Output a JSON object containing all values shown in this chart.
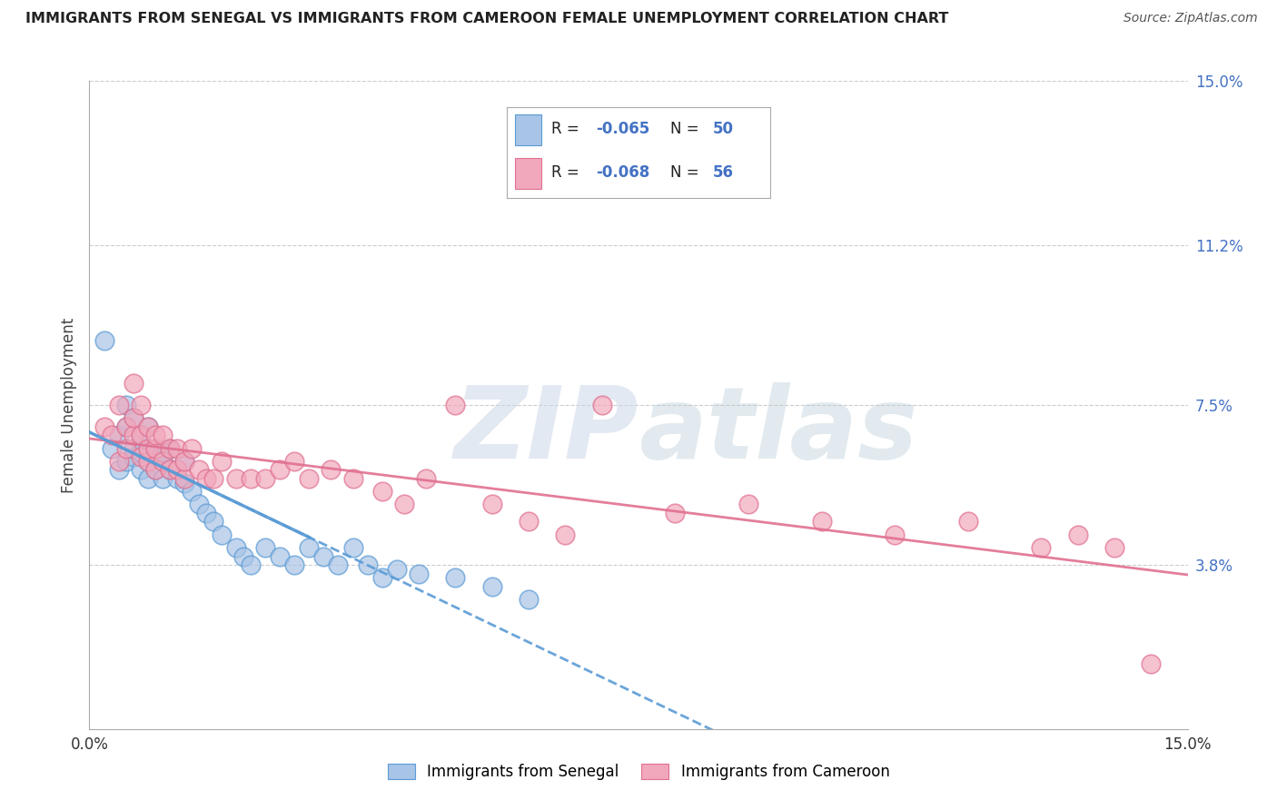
{
  "title": "IMMIGRANTS FROM SENEGAL VS IMMIGRANTS FROM CAMEROON FEMALE UNEMPLOYMENT CORRELATION CHART",
  "source": "Source: ZipAtlas.com",
  "ylabel": "Female Unemployment",
  "xlim": [
    0.0,
    0.15
  ],
  "ylim": [
    0.0,
    0.15
  ],
  "yticks": [
    0.038,
    0.075,
    0.112,
    0.15
  ],
  "ytick_labels": [
    "3.8%",
    "7.5%",
    "11.2%",
    "15.0%"
  ],
  "color_senegal": "#a8c4e6",
  "color_cameroon": "#f2a8bc",
  "color_senegal_line": "#5b9bd5",
  "color_cameroon_line": "#e07090",
  "color_text_blue": "#4472c4",
  "background_color": "#ffffff",
  "watermark_zip_color": "#d0dce8",
  "watermark_atlas_color": "#c8dde8",
  "senegal_x": [
    0.002,
    0.003,
    0.004,
    0.004,
    0.005,
    0.005,
    0.005,
    0.006,
    0.006,
    0.006,
    0.007,
    0.007,
    0.007,
    0.008,
    0.008,
    0.008,
    0.008,
    0.009,
    0.009,
    0.009,
    0.01,
    0.01,
    0.01,
    0.011,
    0.011,
    0.012,
    0.013,
    0.013,
    0.014,
    0.015,
    0.016,
    0.017,
    0.018,
    0.02,
    0.021,
    0.022,
    0.024,
    0.026,
    0.028,
    0.03,
    0.032,
    0.034,
    0.036,
    0.038,
    0.04,
    0.042,
    0.045,
    0.05,
    0.055,
    0.06
  ],
  "senegal_y": [
    0.09,
    0.065,
    0.06,
    0.068,
    0.062,
    0.07,
    0.075,
    0.063,
    0.065,
    0.072,
    0.06,
    0.064,
    0.068,
    0.058,
    0.062,
    0.065,
    0.07,
    0.06,
    0.063,
    0.065,
    0.058,
    0.062,
    0.064,
    0.06,
    0.065,
    0.058,
    0.057,
    0.062,
    0.055,
    0.052,
    0.05,
    0.048,
    0.045,
    0.042,
    0.04,
    0.038,
    0.042,
    0.04,
    0.038,
    0.042,
    0.04,
    0.038,
    0.042,
    0.038,
    0.035,
    0.037,
    0.036,
    0.035,
    0.033,
    0.03
  ],
  "cameroon_x": [
    0.002,
    0.003,
    0.004,
    0.004,
    0.005,
    0.005,
    0.006,
    0.006,
    0.006,
    0.007,
    0.007,
    0.007,
    0.008,
    0.008,
    0.008,
    0.009,
    0.009,
    0.009,
    0.01,
    0.01,
    0.011,
    0.011,
    0.012,
    0.012,
    0.013,
    0.013,
    0.014,
    0.015,
    0.016,
    0.017,
    0.018,
    0.02,
    0.022,
    0.024,
    0.026,
    0.028,
    0.03,
    0.033,
    0.036,
    0.04,
    0.043,
    0.046,
    0.05,
    0.055,
    0.06,
    0.065,
    0.07,
    0.08,
    0.09,
    0.1,
    0.11,
    0.12,
    0.13,
    0.135,
    0.14,
    0.145
  ],
  "cameroon_y": [
    0.07,
    0.068,
    0.062,
    0.075,
    0.065,
    0.07,
    0.068,
    0.072,
    0.08,
    0.063,
    0.068,
    0.075,
    0.062,
    0.065,
    0.07,
    0.06,
    0.065,
    0.068,
    0.062,
    0.068,
    0.06,
    0.065,
    0.06,
    0.065,
    0.058,
    0.062,
    0.065,
    0.06,
    0.058,
    0.058,
    0.062,
    0.058,
    0.058,
    0.058,
    0.06,
    0.062,
    0.058,
    0.06,
    0.058,
    0.055,
    0.052,
    0.058,
    0.075,
    0.052,
    0.048,
    0.045,
    0.075,
    0.05,
    0.052,
    0.048,
    0.045,
    0.048,
    0.042,
    0.045,
    0.042,
    0.015
  ]
}
